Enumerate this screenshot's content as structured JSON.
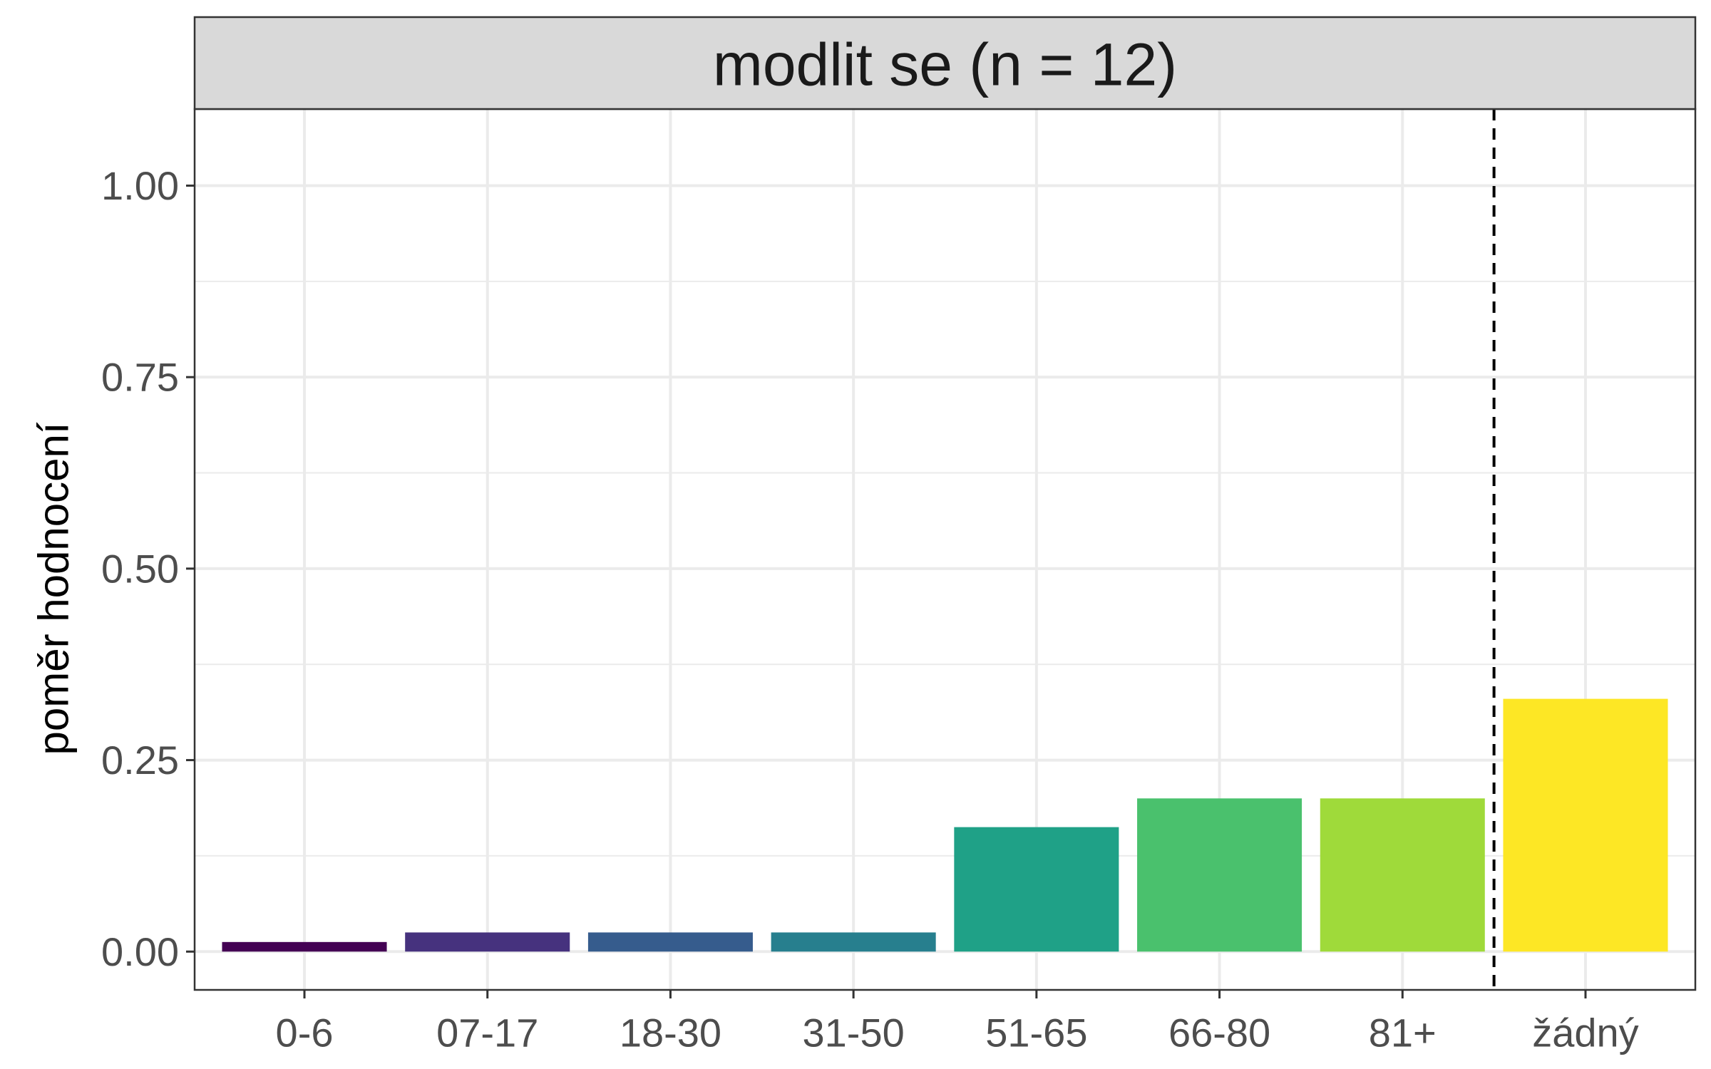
{
  "chart_data": {
    "type": "bar",
    "facet_title": "modlit se (n = 12)",
    "ylabel": "poměr hodnocení",
    "xlabel": "",
    "categories": [
      "0-6",
      "07-17",
      "18-30",
      "31-50",
      "51-65",
      "66-80",
      "81+",
      "žádný"
    ],
    "values": [
      0.0125,
      0.025,
      0.025,
      0.025,
      0.1625,
      0.2,
      0.2,
      0.33
    ],
    "colors": [
      "#440154",
      "#46327E",
      "#365C8D",
      "#277F8E",
      "#1FA187",
      "#4AC16D",
      "#9FDA3A",
      "#FDE725"
    ],
    "ylim": [
      -0.05,
      1.1
    ],
    "yticks": [
      0.0,
      0.25,
      0.5,
      0.75,
      1.0
    ],
    "ytick_labels": [
      "0.00",
      "0.25",
      "0.50",
      "0.75",
      "1.00"
    ],
    "reference_line": {
      "between": [
        "81+",
        "žádný"
      ],
      "style": "dashed"
    },
    "grid": true,
    "legend": "none"
  }
}
